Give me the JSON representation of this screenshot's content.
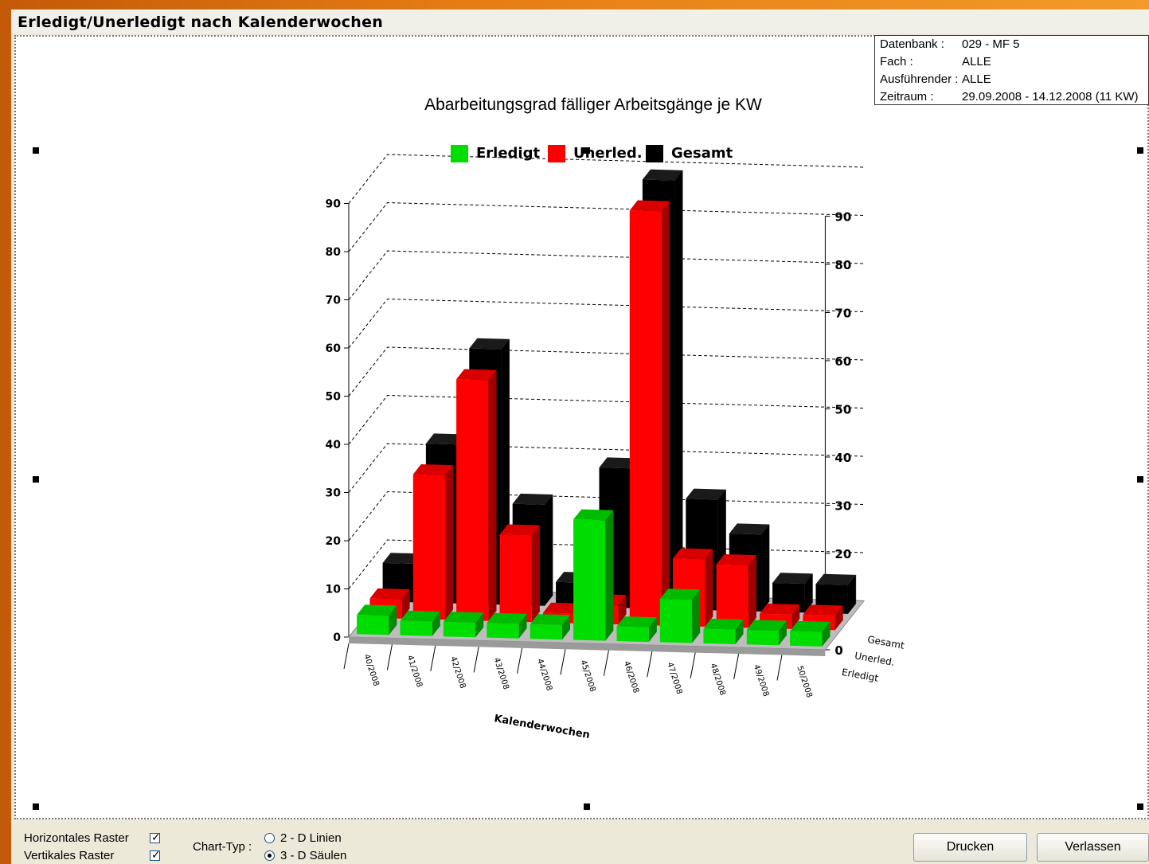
{
  "window": {
    "title": "Erledigt/Unerledigt nach Kalenderwochen"
  },
  "info": {
    "rows": [
      {
        "key": "Datenbank :",
        "value": "029 - MF  5"
      },
      {
        "key": "Fach :",
        "value": "ALLE"
      },
      {
        "key": "Ausführender :",
        "value": "ALLE"
      },
      {
        "key": "Zeitraum :",
        "value": "29.09.2008 - 14.12.2008 (11 KW)"
      }
    ]
  },
  "colors": {
    "erledigt": "#00dd00",
    "unerledigt": "#ff0000",
    "gesamt": "#000000"
  },
  "chart_data": {
    "type": "bar",
    "title": "Abarbeitungsgrad fälliger Arbeitsgänge je KW",
    "xlabel": "Kalenderwochen",
    "ylim": [
      0,
      90
    ],
    "yticks": [
      "0",
      "10",
      "20",
      "30",
      "40",
      "50",
      "60",
      "70",
      "80",
      "90"
    ],
    "categories": [
      "40/2008",
      "41/2008",
      "42/2008",
      "43/2008",
      "44/2008",
      "45/2008",
      "46/2008",
      "47/2008",
      "48/2008",
      "49/2008",
      "50/2008"
    ],
    "depth_labels": [
      "Erledigt",
      "Unerled.",
      "Gesamt"
    ],
    "series": [
      {
        "name": "Erledigt",
        "values": [
          4,
          3,
          3,
          3,
          3,
          25,
          3,
          9,
          3,
          3,
          3
        ]
      },
      {
        "name": "Unerled.",
        "values": [
          4,
          30,
          50,
          18,
          2,
          4,
          86,
          14,
          13,
          3,
          3
        ]
      },
      {
        "name": "Gesamt",
        "values": [
          8,
          33,
          53,
          21,
          5,
          29,
          89,
          23,
          16,
          6,
          6
        ]
      }
    ],
    "legend": {
      "position": "top",
      "labels": [
        "Erledigt",
        "Unerled.",
        "Gesamt"
      ]
    },
    "grid": true
  },
  "controls": {
    "horizontal_grid_label": "Horizontales Raster",
    "vertical_grid_label": "Vertikales Raster",
    "chart_type_label": "Chart-Typ :",
    "chart_type_options": [
      "2 - D Linien",
      "3 - D Säulen"
    ],
    "print_button": "Drucken",
    "exit_button": "Verlassen",
    "check_mark": "✓"
  }
}
